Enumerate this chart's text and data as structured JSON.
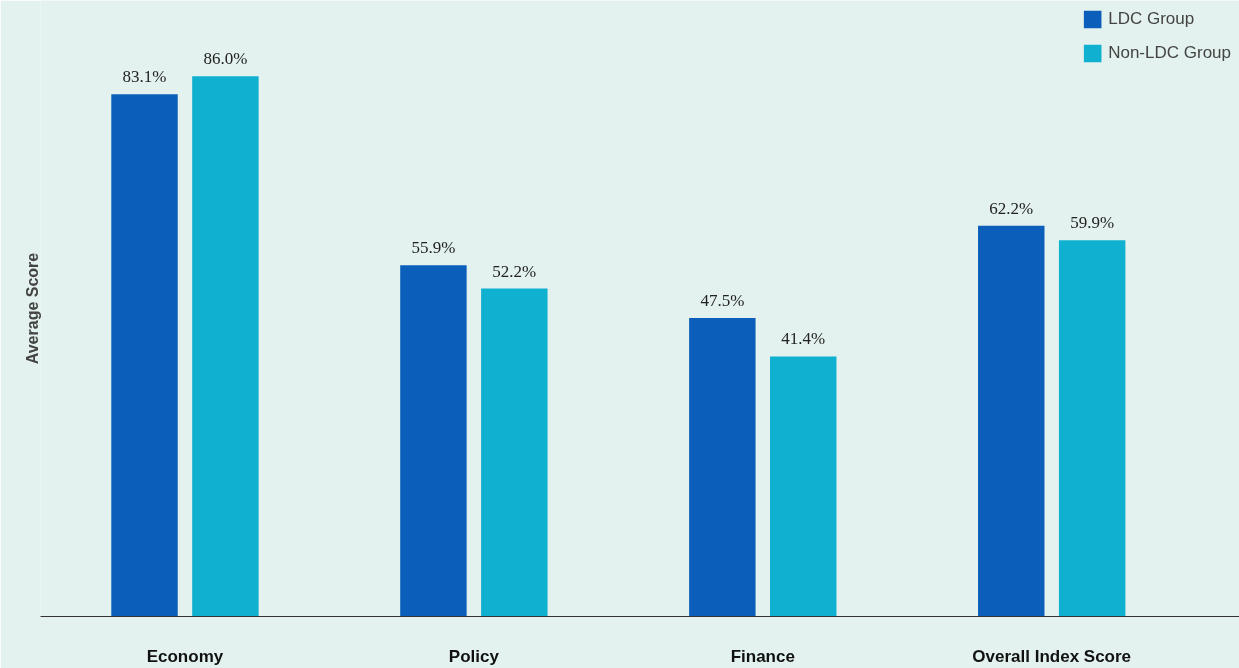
{
  "chart_data": {
    "type": "bar",
    "ylabel": "Average Score",
    "categories": [
      "Economy",
      "Policy",
      "Finance",
      "Overall Index Score"
    ],
    "series": [
      {
        "name": "LDC Group",
        "color": "#0b5fba",
        "values": [
          83.1,
          55.9,
          47.5,
          62.2
        ],
        "value_labels": [
          "83.1%",
          "55.9%",
          "47.5%",
          "62.2%"
        ]
      },
      {
        "name": "Non-LDC Group",
        "color": "#10b0d0",
        "values": [
          86.0,
          52.2,
          41.4,
          59.9
        ],
        "value_labels": [
          "86.0%",
          "52.2%",
          "41.4%",
          "59.9%"
        ]
      }
    ],
    "grid": false,
    "legend": "top right"
  }
}
